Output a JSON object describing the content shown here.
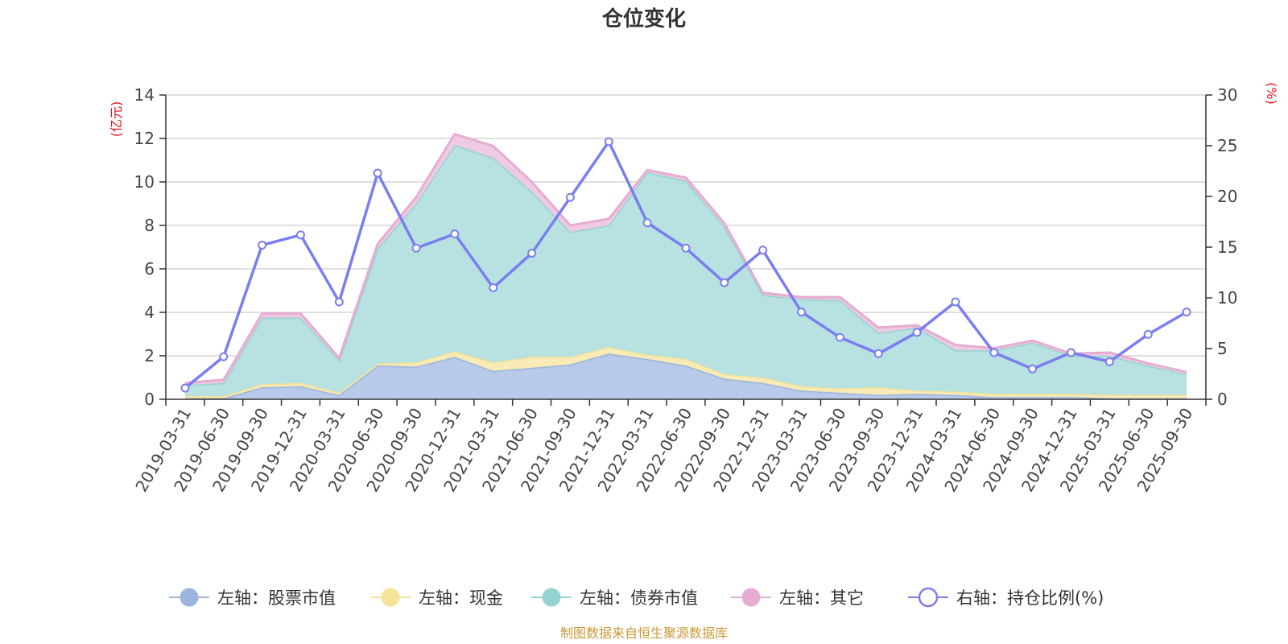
{
  "chart_data": {
    "type": "area",
    "title": "仓位变化",
    "left_unit": "(亿元)",
    "right_unit": "(%)",
    "left_ylim": [
      0,
      14
    ],
    "left_ticks": [
      "0",
      "2",
      "4",
      "6",
      "8",
      "10",
      "12",
      "14"
    ],
    "right_ylim": [
      0,
      30
    ],
    "right_ticks": [
      "0",
      "5",
      "10",
      "15",
      "20",
      "25",
      "30"
    ],
    "categories": [
      "2019-03-31",
      "2019-06-30",
      "2019-09-30",
      "2019-12-31",
      "2020-03-31",
      "2020-06-30",
      "2020-09-30",
      "2020-12-31",
      "2021-03-31",
      "2021-06-30",
      "2021-09-30",
      "2021-12-31",
      "2022-03-31",
      "2022-06-30",
      "2022-09-30",
      "2022-12-31",
      "2023-03-31",
      "2023-06-30",
      "2023-09-30",
      "2023-12-31",
      "2024-03-31",
      "2024-06-30",
      "2024-09-30",
      "2024-12-31",
      "2025-03-31",
      "2025-06-30",
      "2025-09-30"
    ],
    "series": [
      {
        "name": "左轴：股票市值",
        "axis": "left",
        "color": "#9bb5e0",
        "fill": "#b4c6e8",
        "values": [
          0.05,
          0.05,
          0.55,
          0.6,
          0.2,
          1.55,
          1.5,
          1.95,
          1.3,
          1.45,
          1.6,
          2.1,
          1.85,
          1.55,
          0.95,
          0.75,
          0.4,
          0.3,
          0.2,
          0.25,
          0.2,
          0.1,
          0.1,
          0.1,
          0.05,
          0.05,
          0.05
        ]
      },
      {
        "name": "左轴：现金",
        "axis": "left",
        "color": "#f5e39a",
        "fill": "#f8eab1",
        "values": [
          0.1,
          0.1,
          0.15,
          0.15,
          0.1,
          0.1,
          0.2,
          0.25,
          0.4,
          0.5,
          0.35,
          0.3,
          0.2,
          0.3,
          0.2,
          0.25,
          0.2,
          0.2,
          0.35,
          0.15,
          0.15,
          0.15,
          0.15,
          0.15,
          0.15,
          0.15,
          0.15
        ]
      },
      {
        "name": "左轴：债券市值",
        "axis": "left",
        "color": "#95d3d3",
        "fill": "#b4e0e0",
        "values": [
          0.5,
          0.6,
          3.05,
          3.0,
          1.5,
          5.3,
          7.3,
          9.5,
          9.4,
          7.6,
          5.75,
          5.6,
          8.4,
          8.2,
          6.8,
          3.8,
          4.0,
          4.05,
          2.5,
          2.9,
          1.9,
          2.0,
          2.35,
          1.75,
          1.8,
          1.35,
          0.95
        ]
      },
      {
        "name": "左轴：其它",
        "axis": "left",
        "color": "#e5add2",
        "fill": "#eec8e2",
        "values": [
          0.1,
          0.15,
          0.2,
          0.2,
          0.1,
          0.2,
          0.3,
          0.5,
          0.55,
          0.45,
          0.3,
          0.3,
          0.1,
          0.15,
          0.15,
          0.1,
          0.1,
          0.15,
          0.25,
          0.1,
          0.25,
          0.1,
          0.1,
          0.1,
          0.15,
          0.1,
          0.1
        ]
      },
      {
        "name": "右轴：持仓比例(%)",
        "axis": "right",
        "color": "#7b7ef0",
        "values": [
          1.1,
          4.2,
          15.2,
          16.2,
          9.6,
          22.3,
          14.9,
          16.3,
          11.0,
          14.4,
          19.9,
          25.4,
          17.4,
          14.9,
          11.5,
          14.7,
          8.6,
          6.1,
          4.5,
          6.6,
          9.6,
          4.6,
          3.0,
          4.6,
          3.7,
          6.4,
          8.6
        ]
      }
    ],
    "source": "制图数据来自恒生聚源数据库"
  }
}
